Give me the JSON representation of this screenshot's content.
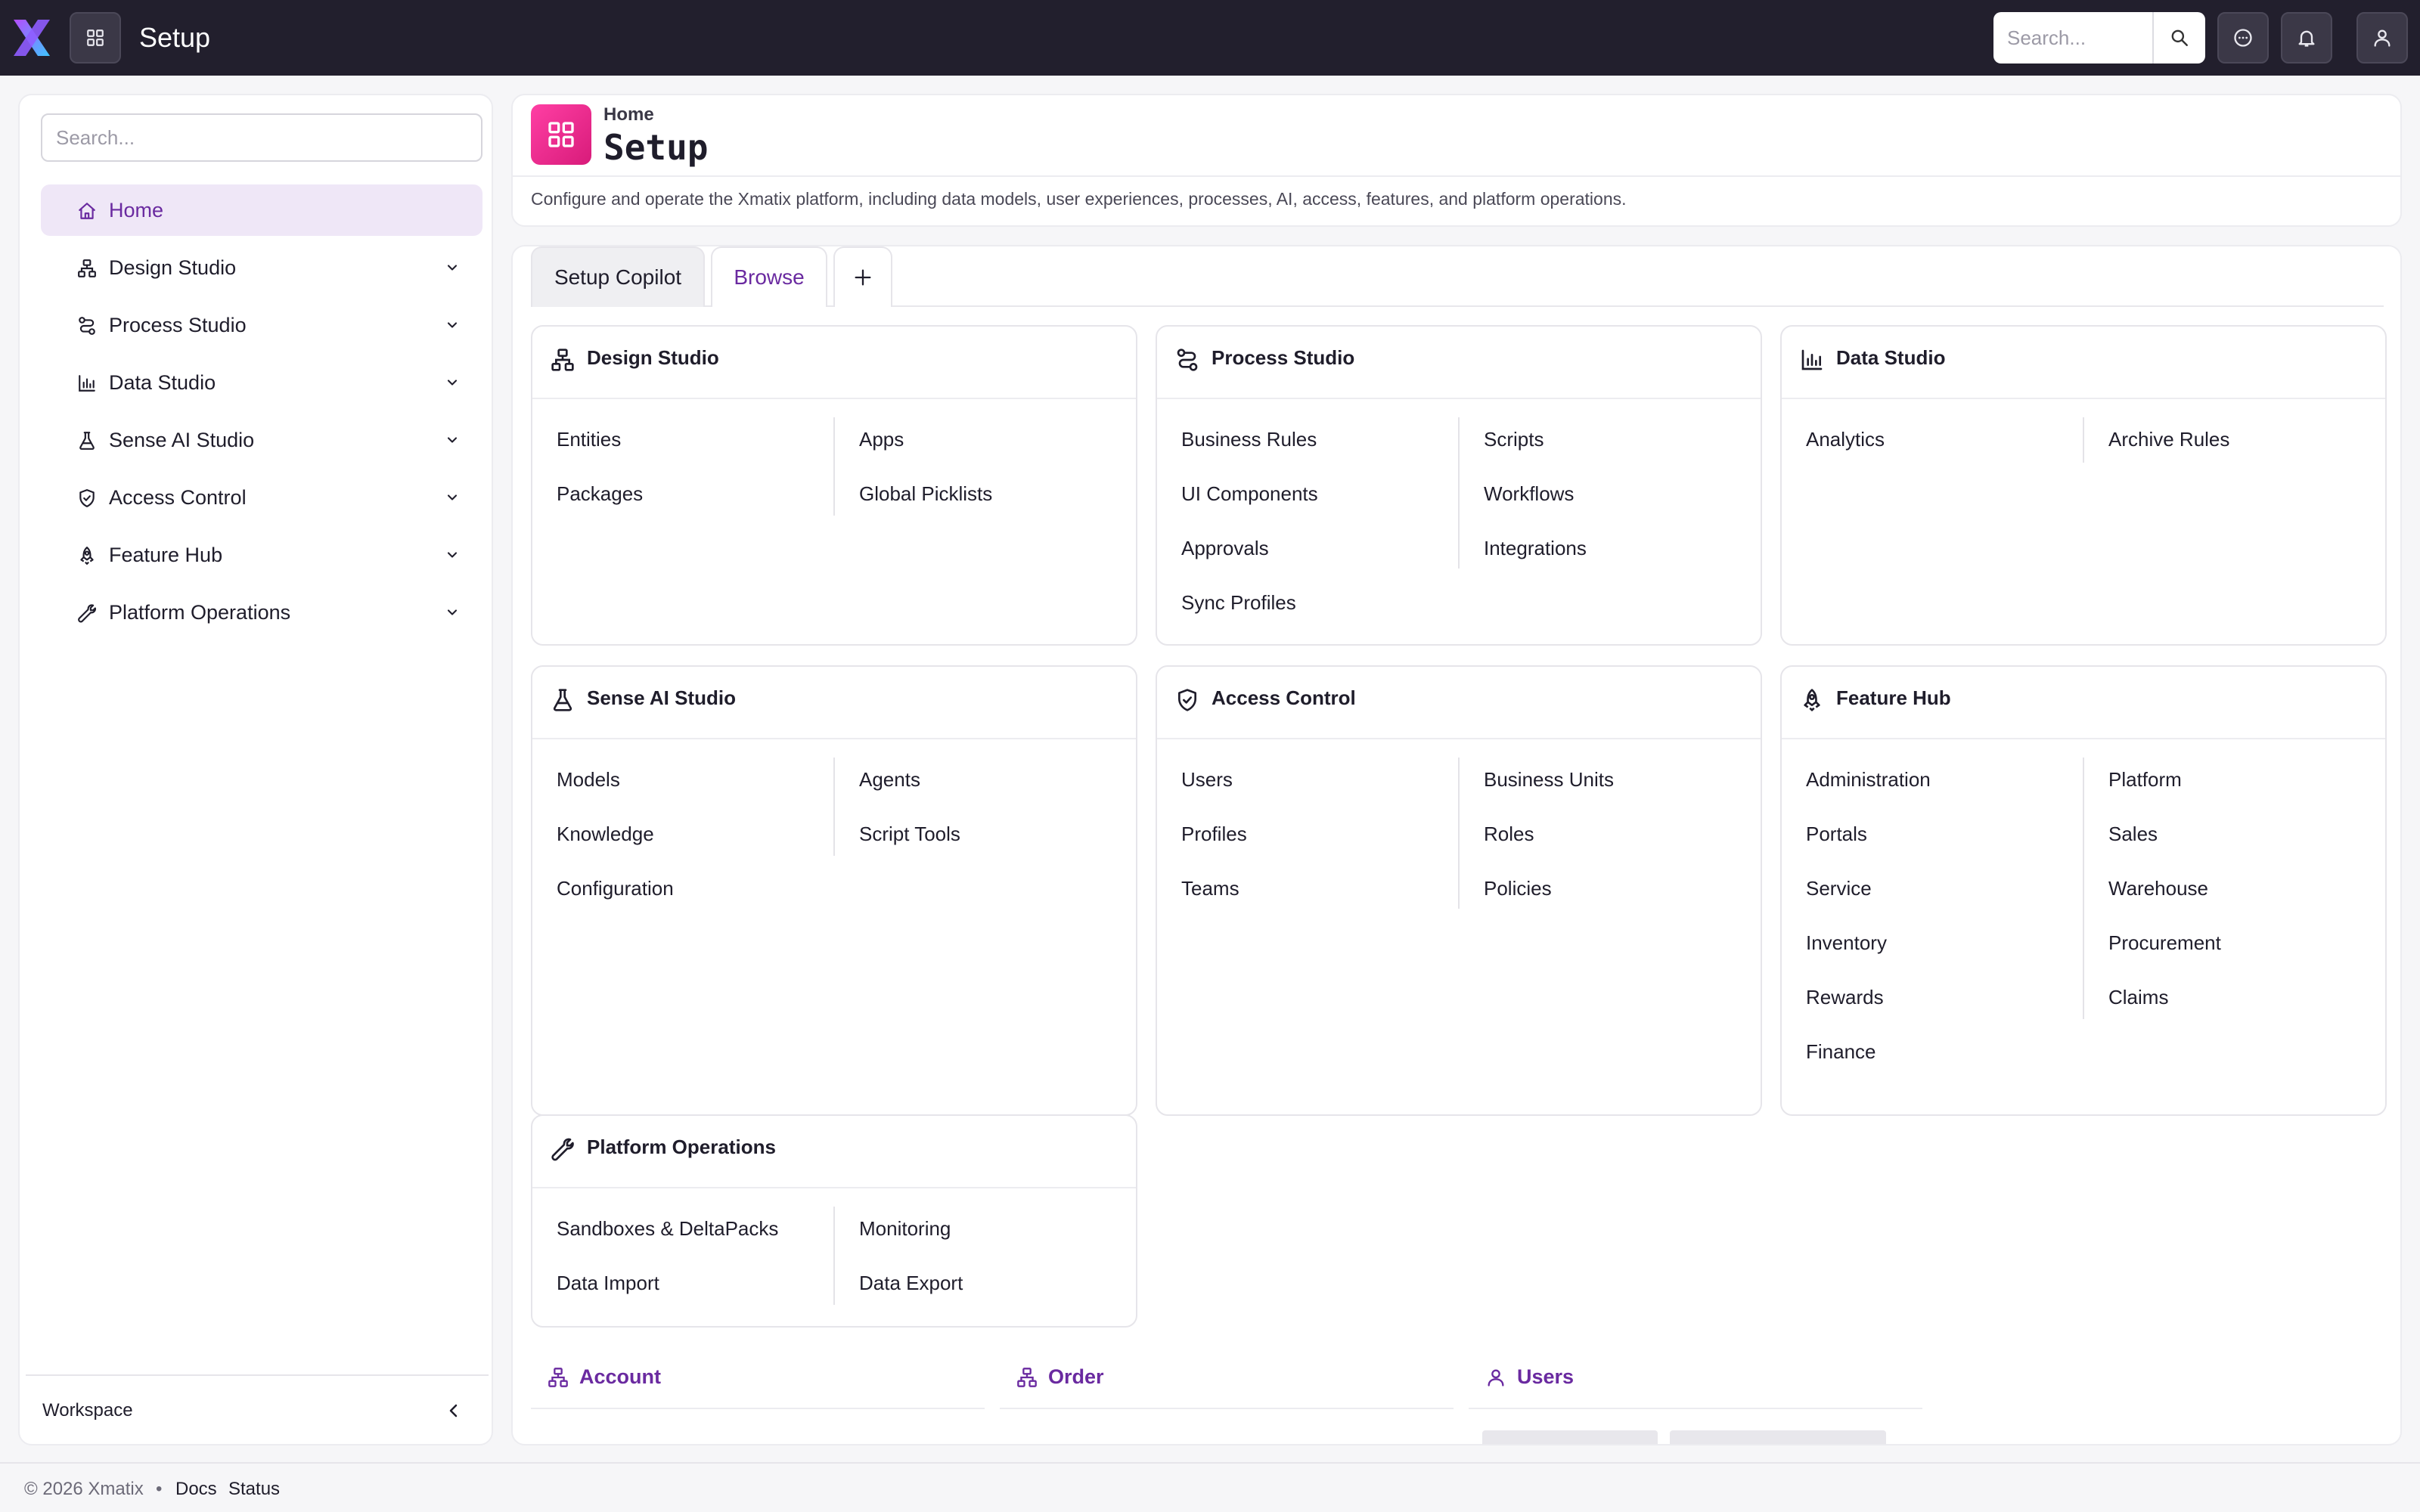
{
  "app": {
    "title": "Setup",
    "search_placeholder": "Search..."
  },
  "sidebar": {
    "search_placeholder": "Search...",
    "items": [
      {
        "label": "Home",
        "icon": "home-icon",
        "active": true
      },
      {
        "label": "Design Studio",
        "icon": "sitemap-icon"
      },
      {
        "label": "Process Studio",
        "icon": "route-icon"
      },
      {
        "label": "Data Studio",
        "icon": "bar-chart-icon"
      },
      {
        "label": "Sense AI Studio",
        "icon": "flask-icon"
      },
      {
        "label": "Access Control",
        "icon": "shield-check-icon"
      },
      {
        "label": "Feature Hub",
        "icon": "rocket-icon"
      },
      {
        "label": "Platform Operations",
        "icon": "wrench-icon"
      }
    ],
    "footer_label": "Workspace"
  },
  "header": {
    "breadcrumb": "Home",
    "title": "Setup",
    "description": "Configure and operate the Xmatix platform, including data models, user experiences, processes, AI, access, features, and platform operations."
  },
  "tabs": [
    "Setup Copilot",
    "Browse",
    "+"
  ],
  "cards": [
    {
      "title": "Design Studio",
      "icon": "sitemap-icon",
      "items": [
        "Entities",
        "Apps",
        "Packages",
        "Global Picklists"
      ]
    },
    {
      "title": "Process Studio",
      "icon": "route-icon",
      "items": [
        "Business Rules",
        "Scripts",
        "UI Components",
        "Workflows",
        "Approvals",
        "Integrations",
        "Sync Profiles"
      ]
    },
    {
      "title": "Data Studio",
      "icon": "bar-chart-icon",
      "items": [
        "Analytics",
        "Archive Rules"
      ]
    },
    {
      "title": "Sense AI Studio",
      "icon": "flask-icon",
      "items": [
        "Models",
        "Agents",
        "Knowledge",
        "Script Tools",
        "Configuration"
      ]
    },
    {
      "title": "Access Control",
      "icon": "shield-check-icon",
      "items": [
        "Users",
        "Business Units",
        "Profiles",
        "Roles",
        "Teams",
        "Policies"
      ]
    },
    {
      "title": "Feature Hub",
      "icon": "rocket-icon",
      "items": [
        "Administration",
        "Platform",
        "Portals",
        "Sales",
        "Service",
        "Warehouse",
        "Inventory",
        "Procurement",
        "Rewards",
        "Claims",
        "Finance"
      ]
    },
    {
      "title": "Platform Operations",
      "icon": "wrench-icon",
      "items": [
        "Sandboxes & DeltaPacks",
        "Monitoring",
        "Data Import",
        "Data Export"
      ]
    }
  ],
  "objects": [
    {
      "label": "Account",
      "icon": "sitemap-icon"
    },
    {
      "label": "Order",
      "icon": "sitemap-icon"
    },
    {
      "label": "Users",
      "icon": "user-icon"
    }
  ],
  "footer": {
    "copyright": "© 2026 Xmatix",
    "separator": "•",
    "links": [
      "Docs",
      "Status"
    ]
  },
  "colors": {
    "topbar": "#221f2d",
    "accent": "#6a2aa0",
    "active_bg": "#efe7f7",
    "header_icon": "#e8238c"
  }
}
